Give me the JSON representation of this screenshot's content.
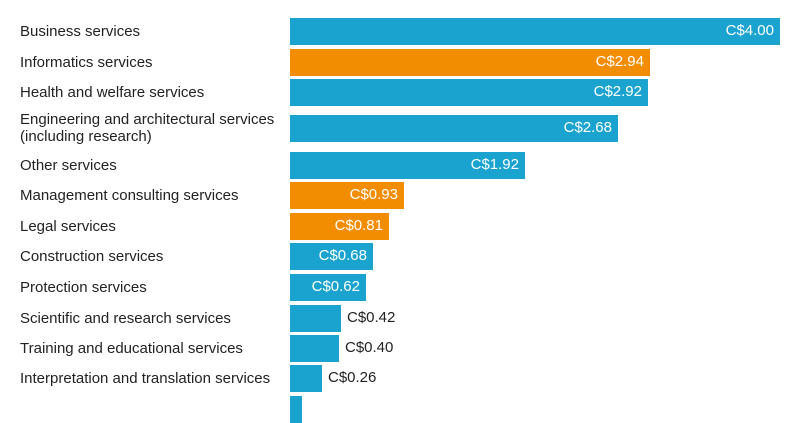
{
  "chart_data": {
    "type": "bar",
    "orientation": "horizontal",
    "title": "",
    "xlabel": "",
    "ylabel": "",
    "xlim": [
      0,
      4.0
    ],
    "colors": {
      "default": "#1aa3cf",
      "highlight": "#f28c00"
    },
    "categories": [
      "Business services",
      "Informatics services",
      "Health and welfare services",
      "Engineering and architectural services\n(including research)",
      "Other services",
      "Management consulting services",
      "Legal services",
      "Construction services",
      "Protection services",
      "Scientific and research services",
      "Training and educational services",
      "Interpretation and translation services",
      ""
    ],
    "values": [
      4.0,
      2.94,
      2.92,
      2.68,
      1.92,
      0.93,
      0.81,
      0.68,
      0.62,
      0.42,
      0.4,
      0.26,
      0.1
    ],
    "labels": [
      "C$4.00",
      "C$2.94",
      "C$2.92",
      "C$2.68",
      "C$1.92",
      "C$0.93",
      "C$0.81",
      "C$0.68",
      "C$0.62",
      "C$0.42",
      "C$0.40",
      "C$0.26",
      ""
    ],
    "highlighted": [
      false,
      true,
      false,
      false,
      false,
      true,
      true,
      false,
      false,
      false,
      false,
      false,
      false
    ]
  }
}
